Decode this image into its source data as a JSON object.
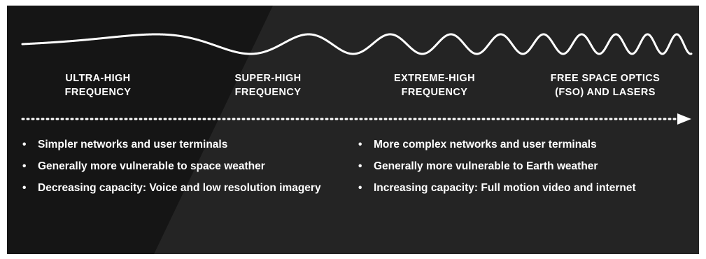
{
  "bands": [
    {
      "line1": "ULTRA-HIGH",
      "line2": "FREQUENCY"
    },
    {
      "line1": "SUPER-HIGH",
      "line2": "FREQUENCY"
    },
    {
      "line1": "EXTREME-HIGH",
      "line2": "FREQUENCY"
    },
    {
      "line1": "FREE SPACE OPTICS",
      "line2": "(FSO) AND LASERS"
    }
  ],
  "left_bullets": [
    "Simpler networks and user terminals",
    "Generally more vulnerable to space weather",
    "Decreasing capacity: Voice and low resolution imagery"
  ],
  "right_bullets": [
    "More complex networks and user terminals",
    "Generally more vulnerable to Earth weather",
    "Increasing capacity: Full motion video and internet"
  ],
  "bullet_symbol": "•",
  "colors": {
    "background": "#151515",
    "diagonal_band": "#262626",
    "text": "#ffffff",
    "wave": "#ffffff"
  }
}
